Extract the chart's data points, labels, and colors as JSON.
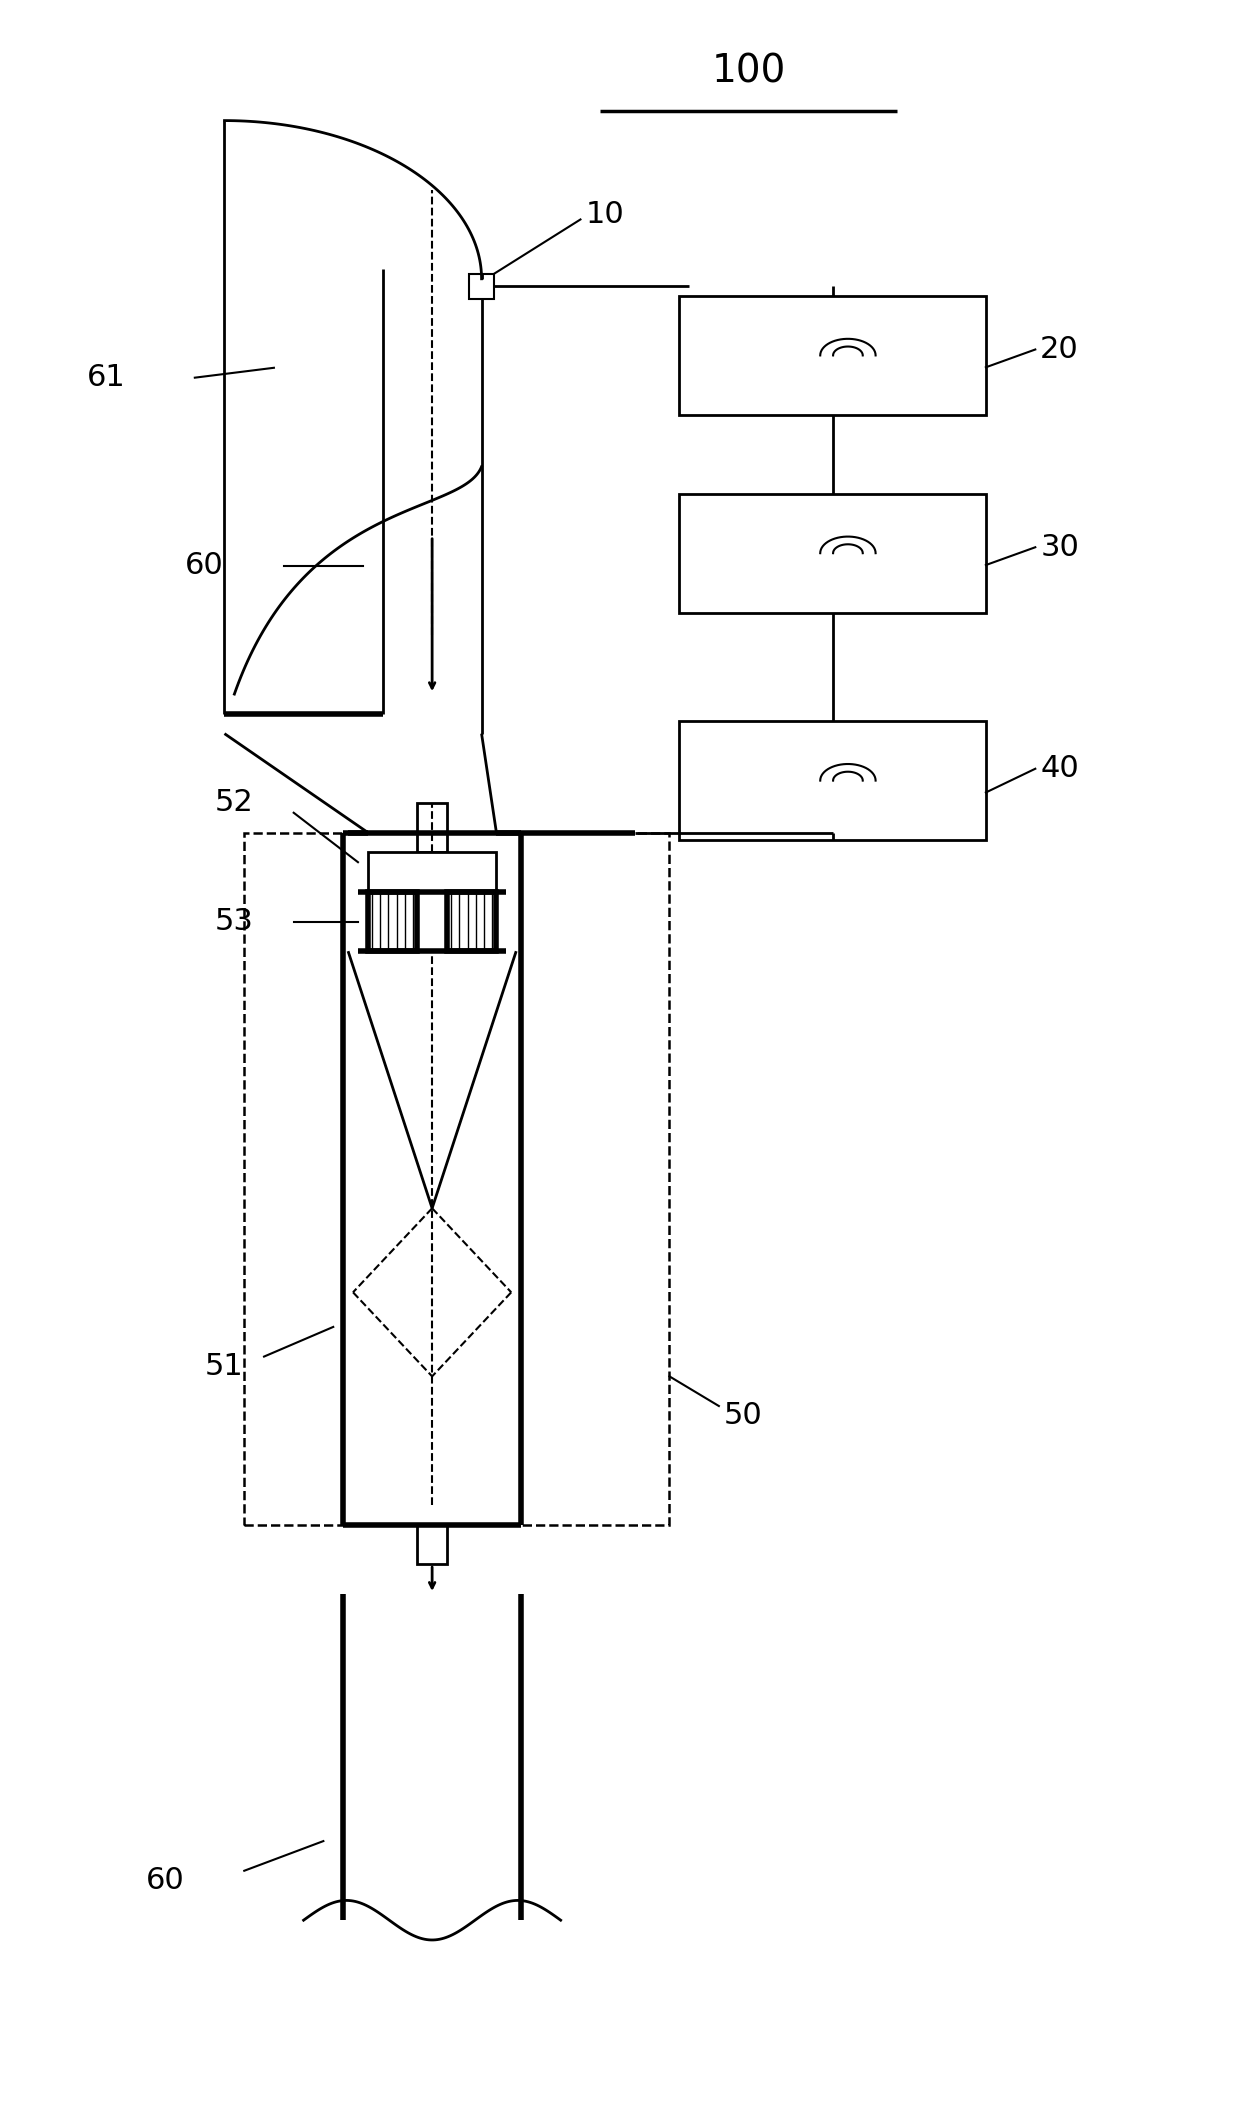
{
  "bg_color": "#ffffff",
  "line_color": "#000000",
  "label_100": "100",
  "label_10": "10",
  "label_20": "20",
  "label_30": "30",
  "label_40": "40",
  "label_50": "50",
  "label_51": "51",
  "label_52": "52",
  "label_53": "53",
  "label_60a": "60",
  "label_60b": "60",
  "label_61": "61"
}
